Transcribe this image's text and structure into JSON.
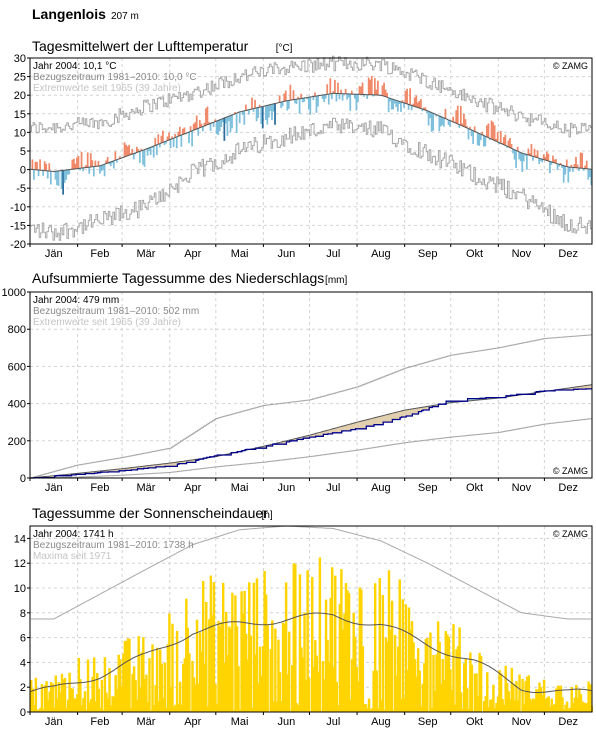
{
  "header": {
    "station": "Langenlois",
    "altitude": "207 m"
  },
  "colors": {
    "warm": "#f08868",
    "warm_strong": "#a81c24",
    "cold": "#7ec0dc",
    "cold_strong": "#2a6c9c",
    "precip_fill": "#a8dcd0",
    "precip_dry": "#e2cfae",
    "precip_line": "#00008b",
    "sun_bar": "#ffd400",
    "envelope": "#a8a8a8",
    "mean_line": "#555555",
    "grid": "#d4d4d4"
  },
  "chart_data": [
    {
      "type": "line",
      "title": "Tagesmittelwert der Lufttemperatur",
      "unit": "[°C]",
      "copyright": "© ZAMG",
      "legend": [
        "Jahr 2004: 10,1 °C",
        "Bezugszeitraum 1981–2010: 10,0 °C",
        "Extremwerte seit 1965 (39 Jahre)"
      ],
      "categories": [
        "Jän",
        "Feb",
        "Mär",
        "Apr",
        "Mai",
        "Jun",
        "Jul",
        "Aug",
        "Sep",
        "Okt",
        "Nov",
        "Dez"
      ],
      "ylim": [
        -20,
        30
      ],
      "yticks": [
        -20,
        -15,
        -10,
        -5,
        0,
        5,
        10,
        15,
        20,
        25,
        30
      ],
      "grid": true,
      "climate_mean_monthly": [
        -0.5,
        1.0,
        5.5,
        10.5,
        15.5,
        18.5,
        20.5,
        20.0,
        15.8,
        10.3,
        4.5,
        0.7
      ],
      "year_2004_monthly": [
        -2.5,
        2.5,
        4.0,
        11.0,
        13.5,
        17.5,
        19.5,
        21.0,
        15.5,
        11.5,
        4.0,
        0.5
      ],
      "extreme_max_monthly": [
        11.5,
        12.5,
        17.0,
        20.5,
        25.0,
        27.5,
        28.5,
        28.5,
        24.0,
        18.5,
        14.5,
        10.5
      ],
      "extreme_min_monthly": [
        -17.0,
        -14.0,
        -10.0,
        -1.0,
        5.0,
        9.0,
        11.5,
        10.5,
        4.5,
        -1.5,
        -7.0,
        -14.5
      ]
    },
    {
      "type": "line",
      "title": "Aufsummierte Tagessumme des Niederschlags",
      "unit": "[mm]",
      "copyright": "© ZAMG",
      "legend": [
        "Jahr 2004: 479 mm",
        "Bezugszeitraum 1981–2010: 502 mm",
        "Extremwerte seit 1965 (39 Jahre)"
      ],
      "categories": [
        "Jän",
        "Feb",
        "Mär",
        "Apr",
        "Mai",
        "Jun",
        "Jul",
        "Aug",
        "Sep",
        "Okt",
        "Nov",
        "Dez"
      ],
      "ylim": [
        0,
        1000
      ],
      "yticks": [
        0,
        200,
        400,
        600,
        800,
        1000
      ],
      "grid": true,
      "cumulative_2004_month_end": [
        20,
        40,
        65,
        120,
        170,
        220,
        265,
        330,
        420,
        435,
        470,
        479
      ],
      "cumulative_mean_month_end": [
        25,
        50,
        80,
        115,
        170,
        230,
        300,
        365,
        405,
        430,
        465,
        502
      ],
      "cumulative_max_month_end": [
        70,
        110,
        160,
        320,
        390,
        420,
        490,
        590,
        660,
        700,
        750,
        770
      ],
      "cumulative_min_month_end": [
        5,
        15,
        30,
        60,
        85,
        115,
        150,
        190,
        220,
        245,
        290,
        320
      ]
    },
    {
      "type": "bar",
      "title": "Tagessumme der Sonnenscheindauer",
      "unit": "[h]",
      "copyright": "© ZAMG",
      "legend": [
        "Jahr 2004: 1741 h",
        "Bezugszeitraum 1981–2010: 1738 h",
        "Maxima seit 1971"
      ],
      "categories": [
        "Jän",
        "Feb",
        "Mär",
        "Apr",
        "Mai",
        "Jun",
        "Jul",
        "Aug",
        "Sep",
        "Okt",
        "Nov",
        "Dez"
      ],
      "ylim": [
        0,
        15
      ],
      "yticks": [
        0,
        2,
        4,
        6,
        8,
        10,
        12,
        14
      ],
      "grid": true,
      "daily_max_monthly": [
        7.5,
        9.5,
        11.5,
        13.5,
        14.7,
        15.0,
        14.8,
        13.8,
        12.0,
        10.0,
        8.0,
        7.5
      ],
      "mean_monthly": [
        1.8,
        3.0,
        4.5,
        6.5,
        7.1,
        7.5,
        7.8,
        7.0,
        5.5,
        4.0,
        2.0,
        1.5
      ],
      "year_2004_monthly": [
        2.0,
        3.5,
        4.0,
        7.0,
        7.0,
        7.5,
        8.0,
        7.5,
        6.0,
        3.5,
        2.0,
        1.5
      ]
    }
  ]
}
